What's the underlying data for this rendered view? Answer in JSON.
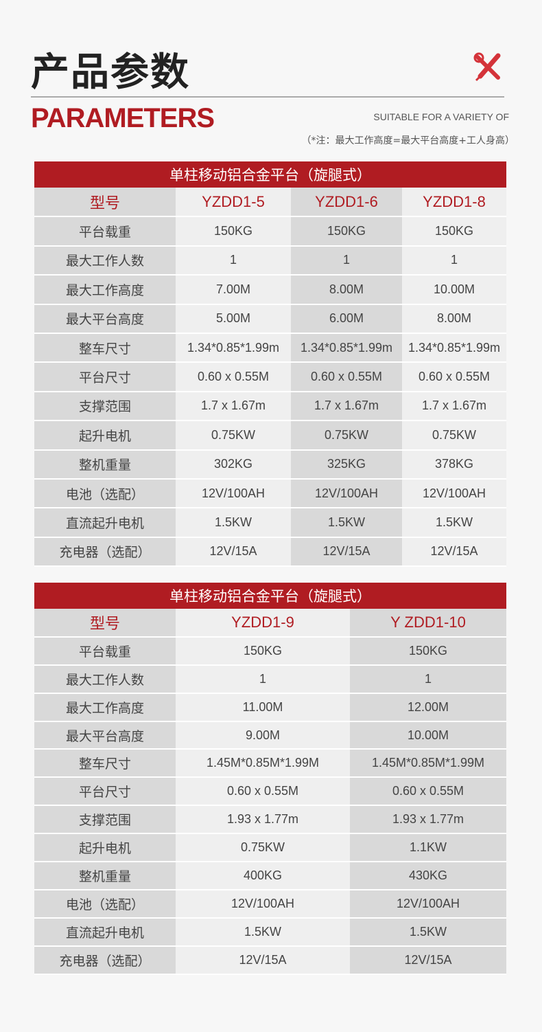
{
  "header": {
    "title": "产品参数",
    "subtitle": "PARAMETERS",
    "tagline": "SUITABLE FOR A VARIETY OF",
    "note": "（*注：最大工作高度=最大平台高度+工人身高）",
    "icon": "tools-icon",
    "accent": "#b01c22"
  },
  "table1": {
    "title": "单柱移动铝合金平台（旋腿式）",
    "model_label": "型号",
    "models": [
      "YZDD1-5",
      "YZDD1-6",
      "YZDD1-8"
    ],
    "rows": [
      {
        "label": "平台载重",
        "values": [
          "150KG",
          "150KG",
          "150KG"
        ]
      },
      {
        "label": "最大工作人数",
        "values": [
          "1",
          "1",
          "1"
        ]
      },
      {
        "label": "最大工作高度",
        "values": [
          "7.00M",
          "8.00M",
          "10.00M"
        ]
      },
      {
        "label": "最大平台高度",
        "values": [
          "5.00M",
          "6.00M",
          "8.00M"
        ]
      },
      {
        "label": "整车尺寸",
        "values": [
          "1.34*0.85*1.99m",
          "1.34*0.85*1.99m",
          "1.34*0.85*1.99m"
        ]
      },
      {
        "label": "平台尺寸",
        "values": [
          "0.60 x 0.55M",
          "0.60 x 0.55M",
          "0.60 x 0.55M"
        ]
      },
      {
        "label": "支撑范围",
        "values": [
          "1.7 x 1.67m",
          "1.7 x 1.67m",
          "1.7 x 1.67m"
        ]
      },
      {
        "label": "起升电机",
        "values": [
          "0.75KW",
          "0.75KW",
          "0.75KW"
        ]
      },
      {
        "label": "整机重量",
        "values": [
          "302KG",
          "325KG",
          "378KG"
        ]
      },
      {
        "label": "电池（选配）",
        "values": [
          "12V/100AH",
          "12V/100AH",
          "12V/100AH"
        ]
      },
      {
        "label": "直流起升电机",
        "values": [
          "1.5KW",
          "1.5KW",
          "1.5KW"
        ]
      },
      {
        "label": "充电器（选配）",
        "values": [
          "12V/15A",
          "12V/15A",
          "12V/15A"
        ]
      }
    ]
  },
  "table2": {
    "title": "单柱移动铝合金平台（旋腿式）",
    "model_label": "型号",
    "models": [
      "YZDD1-9",
      "Y ZDD1-10"
    ],
    "rows": [
      {
        "label": "平台载重",
        "values": [
          "150KG",
          "150KG"
        ]
      },
      {
        "label": "最大工作人数",
        "values": [
          "1",
          "1"
        ]
      },
      {
        "label": "最大工作高度",
        "values": [
          "11.00M",
          "12.00M"
        ]
      },
      {
        "label": "最大平台高度",
        "values": [
          "9.00M",
          "10.00M"
        ]
      },
      {
        "label": "整车尺寸",
        "values": [
          "1.45M*0.85M*1.99M",
          "1.45M*0.85M*1.99M"
        ]
      },
      {
        "label": "平台尺寸",
        "values": [
          "0.60 x 0.55M",
          "0.60 x 0.55M"
        ]
      },
      {
        "label": "支撑范围",
        "values": [
          "1.93 x 1.77m",
          "1.93 x 1.77m"
        ]
      },
      {
        "label": "起升电机",
        "values": [
          "0.75KW",
          "1.1KW"
        ]
      },
      {
        "label": "整机重量",
        "values": [
          "400KG",
          "430KG"
        ]
      },
      {
        "label": "电池（选配）",
        "values": [
          "12V/100AH",
          "12V/100AH"
        ]
      },
      {
        "label": "直流起升电机",
        "values": [
          "1.5KW",
          "1.5KW"
        ]
      },
      {
        "label": "充电器（选配）",
        "values": [
          "12V/15A",
          "12V/15A"
        ]
      }
    ]
  }
}
